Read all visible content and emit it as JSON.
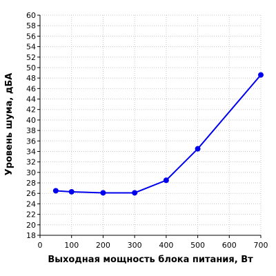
{
  "chart_data": {
    "type": "line",
    "title": "",
    "xlabel": "Выходная мощность блока питания, Вт",
    "ylabel": "Уровень шума, дБА",
    "xlim": [
      0,
      700
    ],
    "ylim": [
      18,
      60
    ],
    "x_ticks": [
      0,
      100,
      200,
      300,
      400,
      500,
      600,
      700
    ],
    "y_ticks": [
      18,
      20,
      22,
      24,
      26,
      28,
      30,
      32,
      34,
      36,
      38,
      40,
      42,
      44,
      46,
      48,
      50,
      52,
      54,
      56,
      58,
      60
    ],
    "grid": true,
    "series": [
      {
        "color": "#0000ee",
        "points": [
          {
            "x": 50,
            "y": 26.5
          },
          {
            "x": 100,
            "y": 26.3
          },
          {
            "x": 200,
            "y": 26.1
          },
          {
            "x": 300,
            "y": 26.1
          },
          {
            "x": 400,
            "y": 28.5
          },
          {
            "x": 500,
            "y": 34.5
          },
          {
            "x": 700,
            "y": 48.6
          }
        ]
      }
    ]
  }
}
